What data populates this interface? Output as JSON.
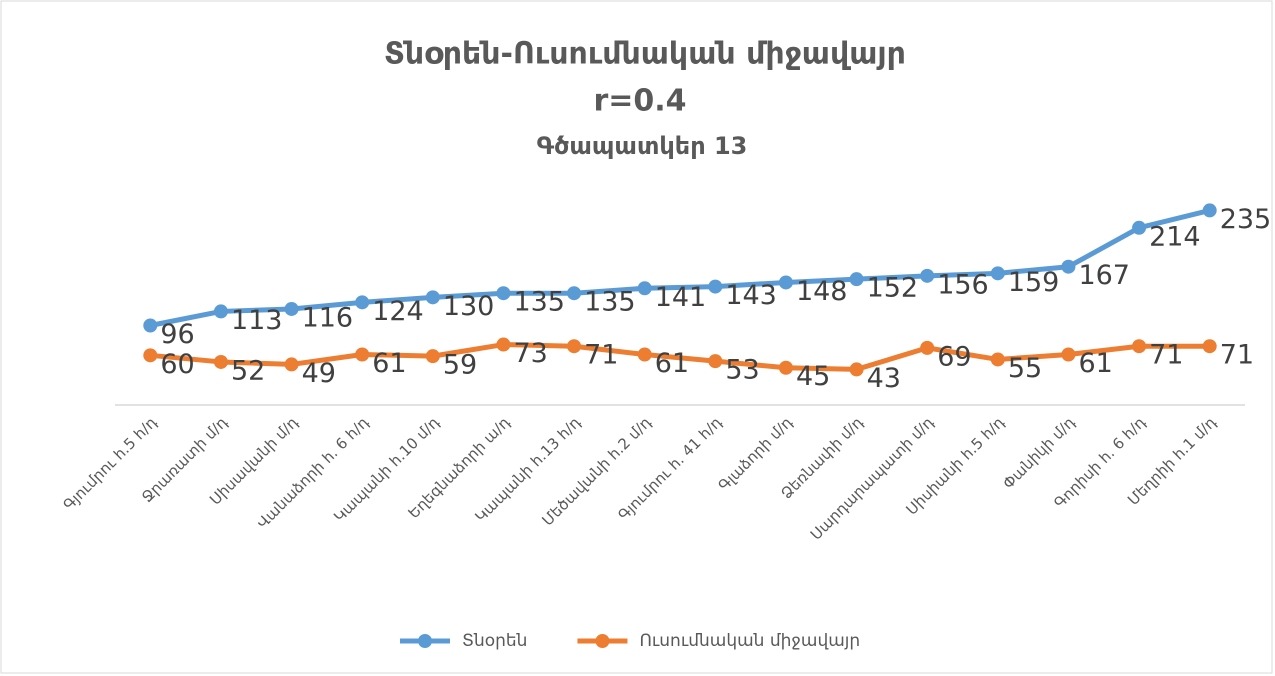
{
  "chart_data": {
    "type": "line",
    "title": "Տնօրեն-Ուսումնական միջավայր",
    "annotation": "r=0.4",
    "subtitle": "Գծապատկեր 13",
    "categories": [
      "Գյումրու հ.5 հ/դ",
      "Ջրառատի մ/դ",
      "Սիսավանի մ/դ",
      "Վանաձորի հ. 6 հ/դ",
      "Կապանի հ.10 մ/դ",
      "Եղեգնաձորի ա/դ",
      "Կապանի հ.13 հ/դ",
      "Մեծավանի հ.2 մ/դ",
      "Գյումրու հ. 41 հ/դ",
      "Գլաձորի մ/դ",
      "Ձեռնափի մ/դ",
      "Սարդարապատի մ/դ",
      "Սիսիանի հ.5 հ/դ",
      "Փանիկի մ/դ",
      "Գորիսի հ. 6 հ/դ",
      "Մեղրիի հ.1 մ/դ"
    ],
    "series": [
      {
        "name": "Տնօրեն",
        "color": "#5b9bd5",
        "values": [
          96,
          113,
          116,
          124,
          130,
          135,
          135,
          141,
          143,
          148,
          152,
          156,
          159,
          167,
          214,
          235
        ]
      },
      {
        "name": "Ուսումնական միջավայր",
        "color": "#ed7d31",
        "values": [
          60,
          52,
          49,
          61,
          59,
          73,
          71,
          61,
          53,
          45,
          43,
          69,
          55,
          61,
          71,
          71
        ]
      }
    ],
    "ylim": [
      0,
      250
    ],
    "legend": "bottom"
  }
}
